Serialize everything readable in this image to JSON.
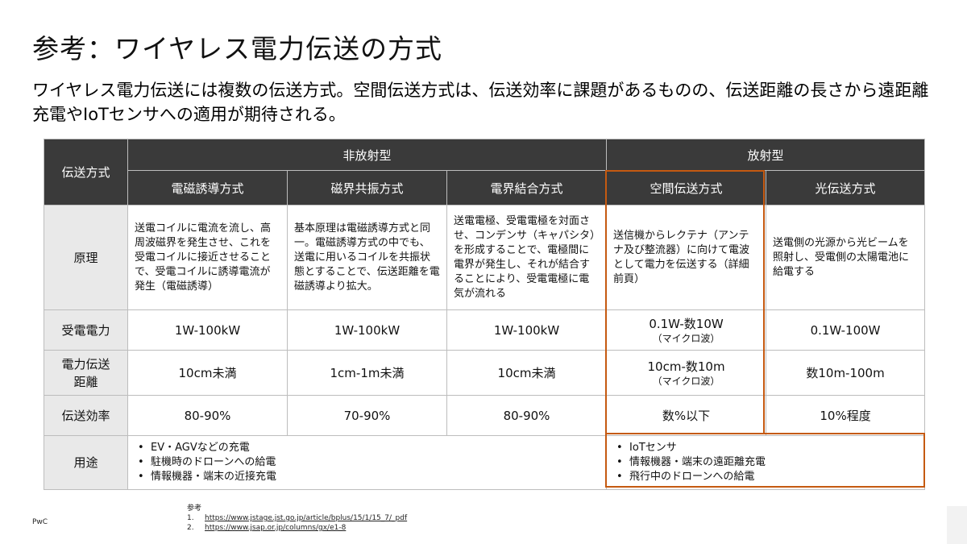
{
  "title": "参考：ワイヤレス電力伝送の方式",
  "subtitle": "ワイヤレス電力伝送には複数の伝送方式。空間伝送方式は、伝送効率に課題があるものの、伝送距離の長さから遠距離充電やIoTセンサへの適用が期待される。",
  "table": {
    "corner_label": "伝送方式",
    "group_nonradiative": "非放射型",
    "group_radiative": "放射型",
    "methods": [
      "電磁誘導方式",
      "磁界共振方式",
      "電界結合方式",
      "空間伝送方式",
      "光伝送方式"
    ],
    "row_labels": {
      "principle": "原理",
      "power": "受電電力",
      "distance_line1": "電力伝送",
      "distance_line2": "距離",
      "efficiency": "伝送効率",
      "usage": "用途"
    },
    "principle": [
      "送電コイルに電流を流し、高周波磁界を発生させ、これを受電コイルに接近させることで、受電コイルに誘導電流が発生（電磁誘導）",
      "基本原理は電磁誘導方式と同一。電磁誘導方式の中でも、送電に用いるコイルを共振状態とすることで、伝送距離を電磁誘導より拡大。",
      "送電電極、受電電極を対面させ、コンデンサ（キャパシタ）を形成することで、電極間に電界が発生し、それが結合することにより、受電電極に電気が流れる",
      "送信機からレクテナ（アンテナ及び整流器）に向けて電波として電力を伝送する（詳細前頁）",
      "送電側の光源から光ビームを照射し、受電側の太陽電池に給電する"
    ],
    "power": [
      "1W-100kW",
      "1W-100kW",
      "1W-100kW",
      "0.1W-数10W",
      "0.1W-100W"
    ],
    "power_note_space": "（マイクロ波）",
    "distance": [
      "10cm未満",
      "1cm-1m未満",
      "10cm未満",
      "10cm-数10m",
      "数10m-100m"
    ],
    "distance_note_space": "（マイクロ波）",
    "efficiency": [
      "80-90%",
      "70-90%",
      "80-90%",
      "数%以下",
      "10%程度"
    ],
    "usage_nonradiative": [
      "EV・AGVなどの充電",
      "駐機時のドローンへの給電",
      "情報機器・端末の近接充電"
    ],
    "usage_radiative": [
      "IoTセンサ",
      "情報機器・端末の遠距離充電",
      "飛行中のドローンへの給電"
    ]
  },
  "references": {
    "heading": "参考",
    "items": [
      {
        "num": "1.",
        "url": "https://www.jstage.jst.go.jp/article/bplus/15/1/15_7/_pdf"
      },
      {
        "num": "2.",
        "url": "https://www.jsap.or.jp/columns/gx/e1-8"
      }
    ]
  },
  "brand": "PwC",
  "colors": {
    "header_dark": "#3a3a3a",
    "side_header": "#e9e9e9",
    "highlight": "#c55a11"
  }
}
